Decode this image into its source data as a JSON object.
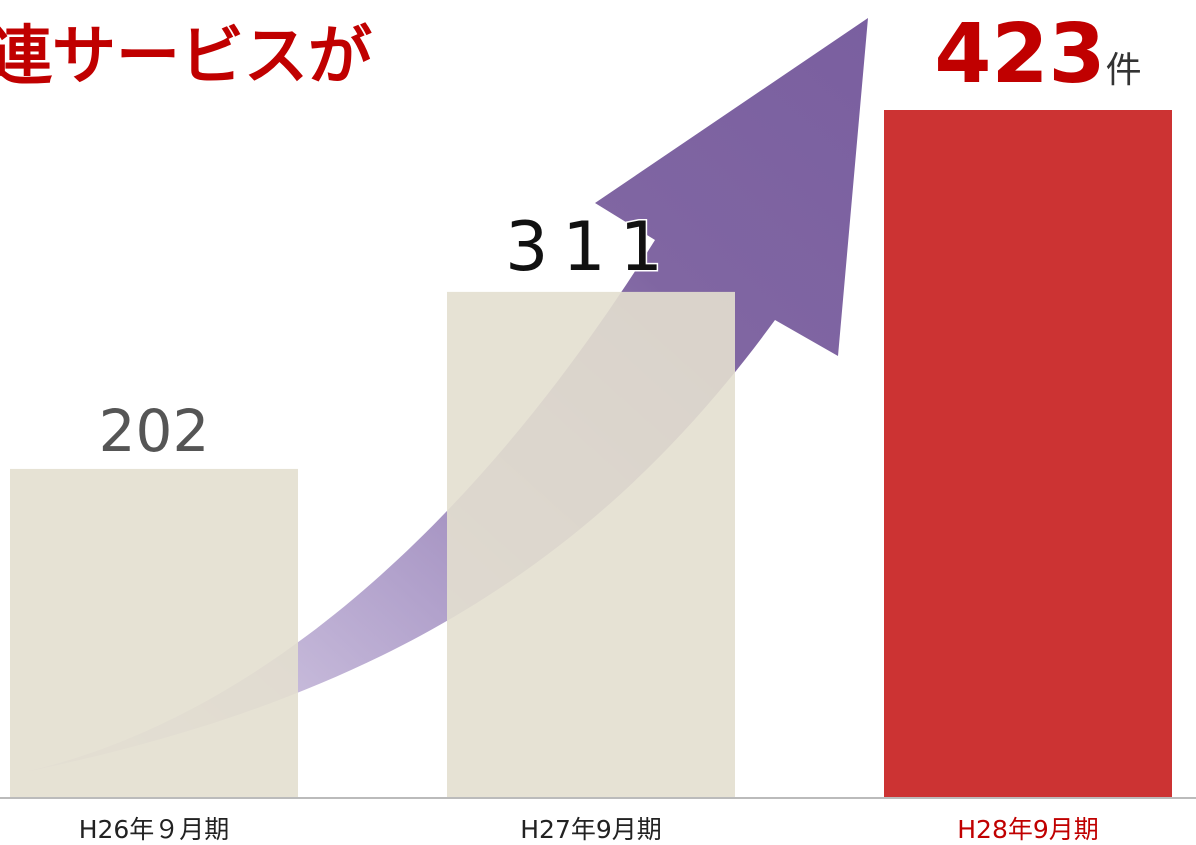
{
  "chart_data": {
    "type": "bar",
    "title": "連サービスが",
    "categories": [
      "H26年９月期",
      "H27年9月期",
      "H28年9月期"
    ],
    "values": [
      202,
      311,
      423
    ],
    "unit": "件",
    "colors": [
      "#e3dfcf",
      "#e3dfcf",
      "#cc3333"
    ]
  }
}
